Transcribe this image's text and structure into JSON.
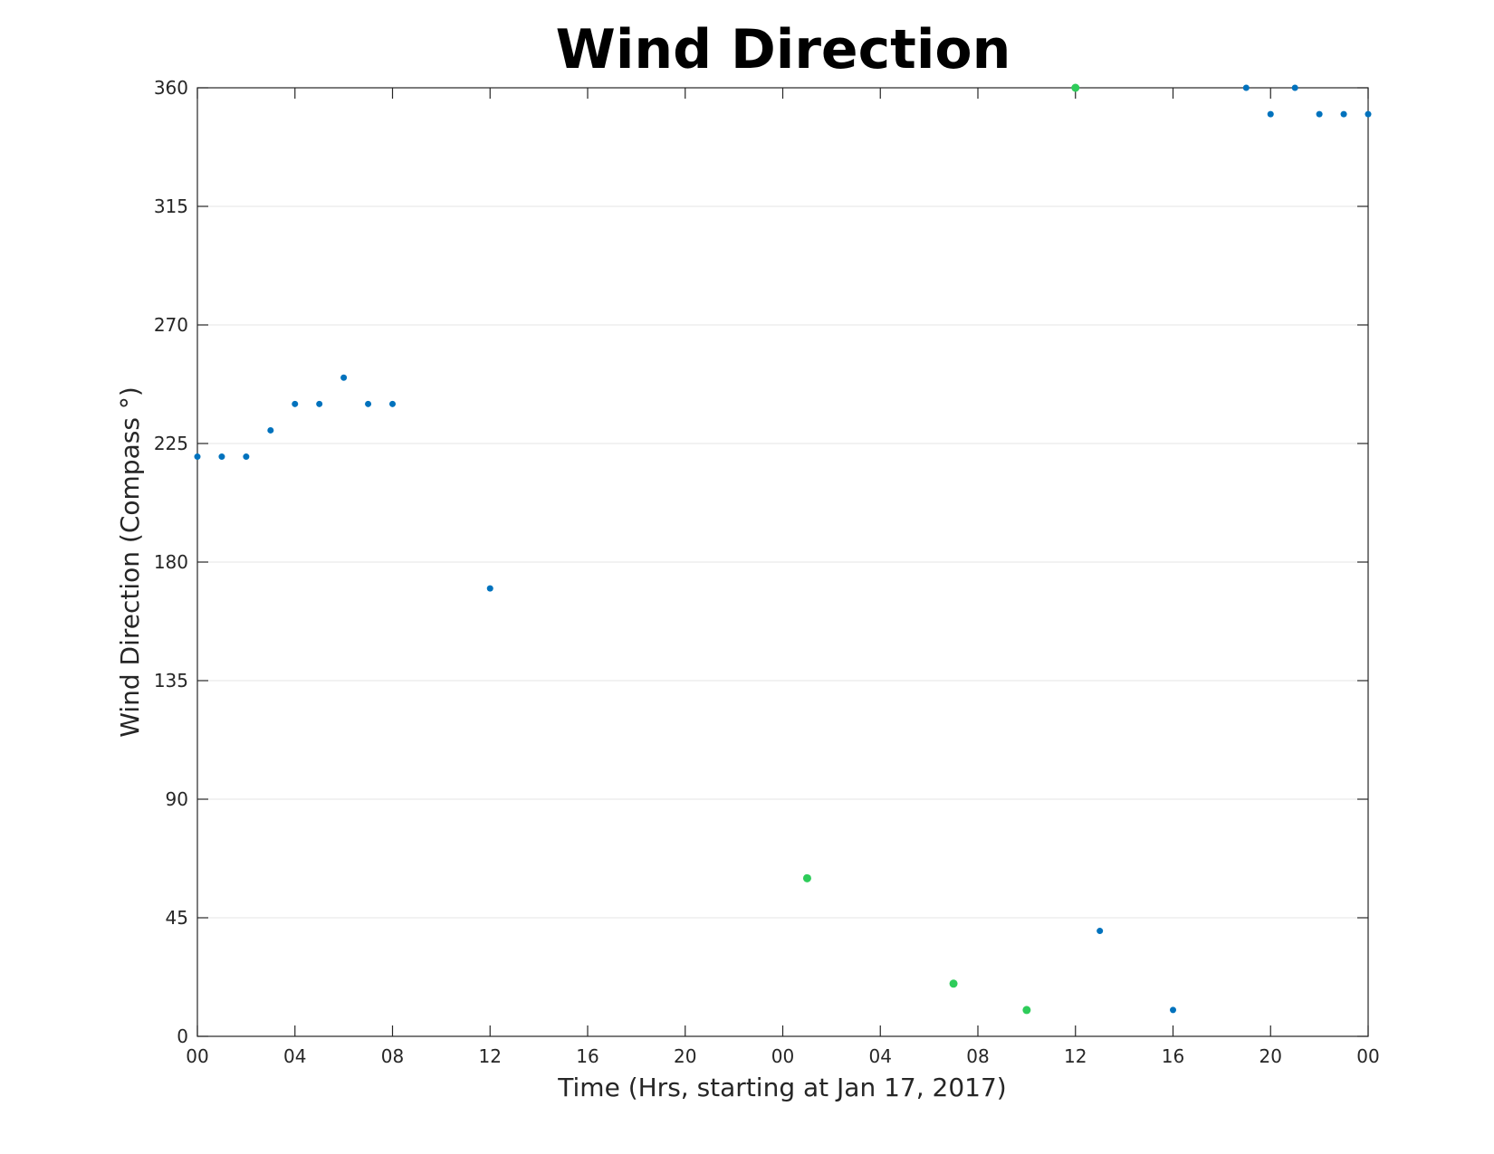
{
  "chart_data": {
    "type": "scatter",
    "title": "Wind Direction",
    "xlabel": "Time (Hrs, starting at Jan 17, 2017)",
    "ylabel": "Wind Direction (Compass °)",
    "x_axis_kind": "datetime",
    "xlim": [
      "2017-01-17T00:00",
      "2017-01-19T00:00"
    ],
    "ylim": [
      0,
      360
    ],
    "grid": "horizontal",
    "x_ticks": [
      {
        "at": "2017-01-17T00:00",
        "label": "00"
      },
      {
        "at": "2017-01-17T04:00",
        "label": "04"
      },
      {
        "at": "2017-01-17T08:00",
        "label": "08"
      },
      {
        "at": "2017-01-17T12:00",
        "label": "12"
      },
      {
        "at": "2017-01-17T16:00",
        "label": "16"
      },
      {
        "at": "2017-01-17T20:00",
        "label": "20"
      },
      {
        "at": "2017-01-18T00:00",
        "label": "00"
      },
      {
        "at": "2017-01-18T04:00",
        "label": "04"
      },
      {
        "at": "2017-01-18T08:00",
        "label": "08"
      },
      {
        "at": "2017-01-18T12:00",
        "label": "12"
      },
      {
        "at": "2017-01-18T16:00",
        "label": "16"
      },
      {
        "at": "2017-01-18T20:00",
        "label": "20"
      },
      {
        "at": "2017-01-19T00:00",
        "label": "00"
      }
    ],
    "y_ticks": [
      {
        "value": 0,
        "label": "0"
      },
      {
        "value": 45,
        "label": "45"
      },
      {
        "value": 90,
        "label": "90"
      },
      {
        "value": 135,
        "label": "135"
      },
      {
        "value": 180,
        "label": "180"
      },
      {
        "value": 225,
        "label": "225"
      },
      {
        "value": 270,
        "label": "270"
      },
      {
        "value": 315,
        "label": "315"
      },
      {
        "value": 360,
        "label": "360"
      }
    ],
    "series": [
      {
        "color": "#0072BD",
        "points": [
          {
            "x": "2017-01-17T00:00",
            "y": 220
          },
          {
            "x": "2017-01-17T01:00",
            "y": 220
          },
          {
            "x": "2017-01-17T02:00",
            "y": 220
          },
          {
            "x": "2017-01-17T03:00",
            "y": 230
          },
          {
            "x": "2017-01-17T04:00",
            "y": 240
          },
          {
            "x": "2017-01-17T05:00",
            "y": 240
          },
          {
            "x": "2017-01-17T06:00",
            "y": 250
          },
          {
            "x": "2017-01-17T07:00",
            "y": 240
          },
          {
            "x": "2017-01-17T08:00",
            "y": 240
          },
          {
            "x": "2017-01-17T12:00",
            "y": 170
          },
          {
            "x": "2017-01-18T13:00",
            "y": 40
          },
          {
            "x": "2017-01-18T16:00",
            "y": 10
          },
          {
            "x": "2017-01-18T19:00",
            "y": 360
          },
          {
            "x": "2017-01-18T20:00",
            "y": 350
          },
          {
            "x": "2017-01-18T21:00",
            "y": 360
          },
          {
            "x": "2017-01-18T22:00",
            "y": 350
          },
          {
            "x": "2017-01-18T23:00",
            "y": 350
          },
          {
            "x": "2017-01-19T00:00",
            "y": 350
          }
        ]
      },
      {
        "color": "#2ECC5A",
        "points": [
          {
            "x": "2017-01-18T01:00",
            "y": 60
          },
          {
            "x": "2017-01-18T07:00",
            "y": 20
          },
          {
            "x": "2017-01-18T10:00",
            "y": 10
          },
          {
            "x": "2017-01-18T12:00",
            "y": 360
          }
        ]
      }
    ]
  }
}
